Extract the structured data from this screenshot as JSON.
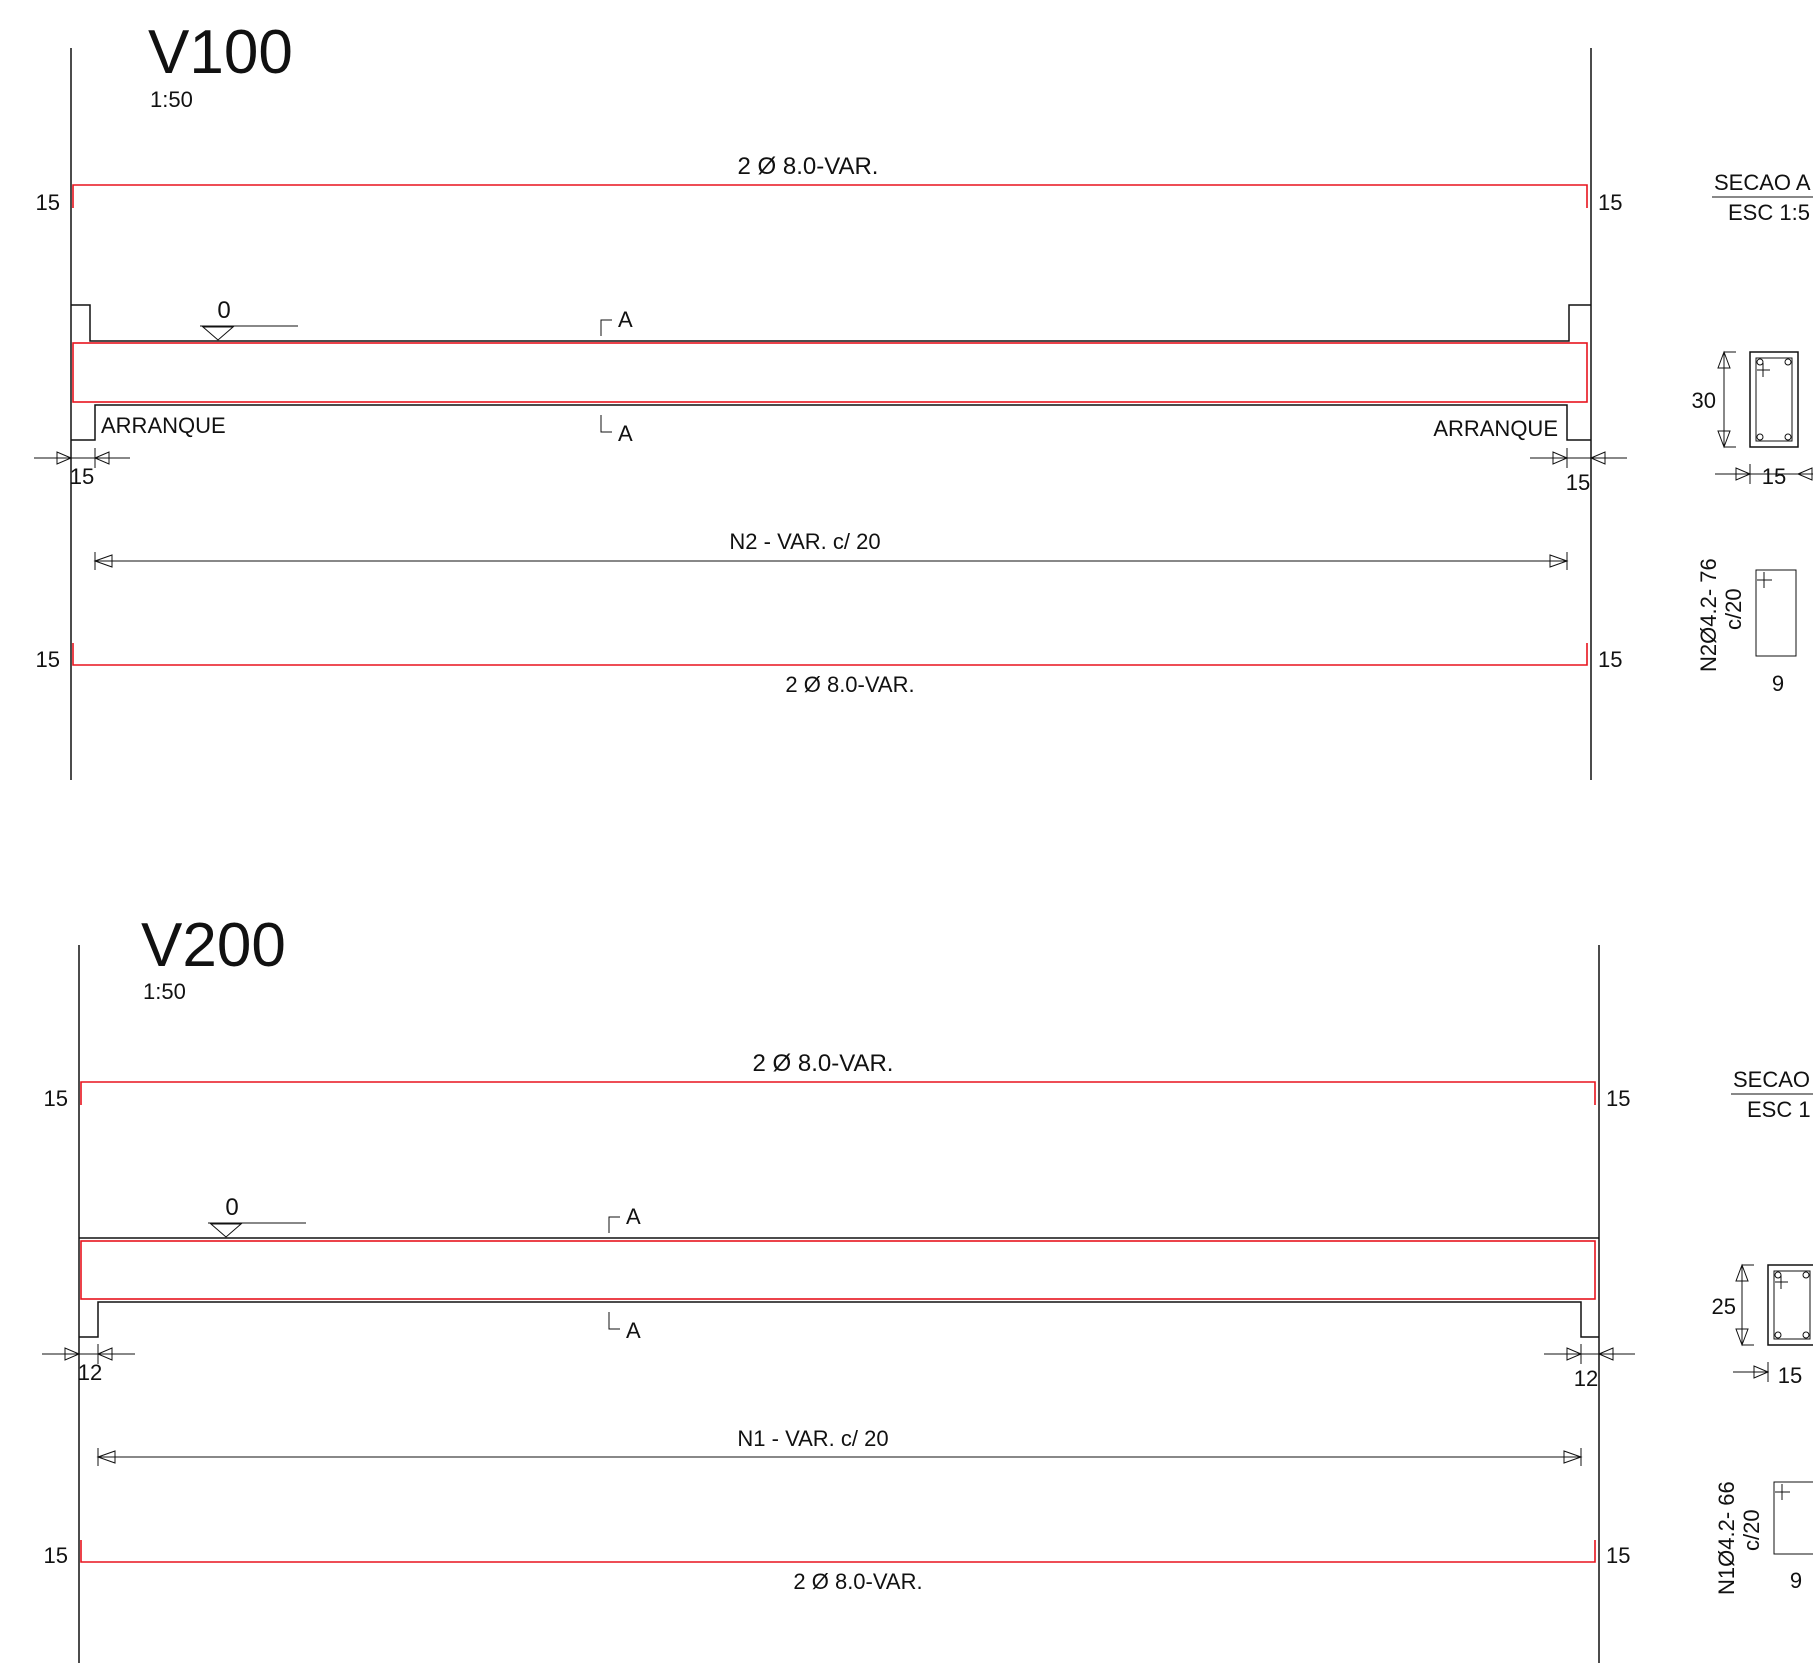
{
  "beams": [
    {
      "id": "v100",
      "title": "V100",
      "scale": "1:50",
      "top_bar_label": "2 Ø 8.0-VAR.",
      "bottom_bar_label": "2 Ø 8.0-VAR.",
      "hook_top_left": "15",
      "hook_top_right": "15",
      "hook_bottom_left": "15",
      "hook_bottom_right": "15",
      "level_mark": "0",
      "cut_top": "A",
      "cut_bottom": "A",
      "support_left_label": "ARRANQUE",
      "support_right_label": "ARRANQUE",
      "support_left_width": "15",
      "support_right_width": "15",
      "stirrup_label": "N2 - VAR. c/ 20",
      "section": {
        "title": "SECAO A",
        "scale": "ESC 1:5",
        "height": "30",
        "width": "15",
        "stirrup_code": "N2Ø4.2- 76",
        "stirrup_spacing": "c/20",
        "stirrup_width": "9"
      }
    },
    {
      "id": "v200",
      "title": "V200",
      "scale": "1:50",
      "top_bar_label": "2 Ø 8.0-VAR.",
      "bottom_bar_label": "2 Ø 8.0-VAR.",
      "hook_top_left": "15",
      "hook_top_right": "15",
      "hook_bottom_left": "15",
      "hook_bottom_right": "15",
      "level_mark": "0",
      "cut_top": "A",
      "cut_bottom": "A",
      "support_left_width": "12",
      "support_right_width": "12",
      "stirrup_label": "N1 - VAR. c/ 20",
      "section": {
        "title": "SECAO",
        "scale": "ESC 1",
        "height": "25",
        "width": "15",
        "stirrup_code": "N1Ø4.2- 66",
        "stirrup_spacing": "c/20",
        "stirrup_width": "9"
      }
    }
  ]
}
